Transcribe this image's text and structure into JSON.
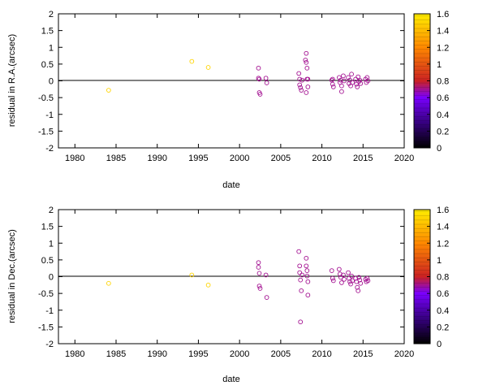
{
  "chart_data": [
    {
      "type": "scatter",
      "xlabel": "date",
      "ylabel": "residual in R.A.(arcsec)",
      "xlim": [
        1978,
        2020
      ],
      "ylim": [
        -2,
        2
      ],
      "xticks": [
        1980,
        1985,
        1990,
        1995,
        2000,
        2005,
        2010,
        2015,
        2020
      ],
      "yticks": [
        -2,
        -1.5,
        -1,
        -0.5,
        0,
        0.5,
        1,
        1.5,
        2
      ],
      "zero_line": true,
      "grid": false,
      "marker": "open-circle",
      "colorbar": {
        "range": [
          0,
          1.6
        ],
        "ticks": [
          0,
          0.2,
          0.4,
          0.6,
          0.8,
          1,
          1.2,
          1.4,
          1.6
        ],
        "colormap": [
          "#000000",
          "#7a00ff",
          "#cc2222",
          "#ff8800",
          "#ffee00"
        ]
      },
      "points": [
        {
          "x": 1984.1,
          "y": -0.28,
          "c": 1.5
        },
        {
          "x": 1994.2,
          "y": 0.58,
          "c": 1.5
        },
        {
          "x": 1996.2,
          "y": 0.4,
          "c": 1.5
        },
        {
          "x": 2002.3,
          "y": 0.38,
          "c": 0.6
        },
        {
          "x": 2002.3,
          "y": 0.08,
          "c": 0.6
        },
        {
          "x": 2002.4,
          "y": -0.35,
          "c": 0.6
        },
        {
          "x": 2002.5,
          "y": -0.4,
          "c": 0.6
        },
        {
          "x": 2002.4,
          "y": 0.05,
          "c": 0.6
        },
        {
          "x": 2003.2,
          "y": 0.08,
          "c": 0.6
        },
        {
          "x": 2003.3,
          "y": -0.06,
          "c": 0.6
        },
        {
          "x": 2007.2,
          "y": 0.22,
          "c": 0.6
        },
        {
          "x": 2007.3,
          "y": 0.05,
          "c": 0.6
        },
        {
          "x": 2007.3,
          "y": -0.12,
          "c": 0.6
        },
        {
          "x": 2007.4,
          "y": -0.2,
          "c": 0.6
        },
        {
          "x": 2007.5,
          "y": -0.28,
          "c": 0.6
        },
        {
          "x": 2007.6,
          "y": 0.02,
          "c": 0.6
        },
        {
          "x": 2008.1,
          "y": 0.82,
          "c": 0.6
        },
        {
          "x": 2008.1,
          "y": 0.55,
          "c": 0.6
        },
        {
          "x": 2008.2,
          "y": 0.38,
          "c": 0.6
        },
        {
          "x": 2008.0,
          "y": 0.62,
          "c": 0.6
        },
        {
          "x": 2008.2,
          "y": 0.05,
          "c": 0.6
        },
        {
          "x": 2008.3,
          "y": -0.18,
          "c": 0.6
        },
        {
          "x": 2008.1,
          "y": -0.35,
          "c": 0.6
        },
        {
          "x": 2008.3,
          "y": 0.05,
          "c": 0.6
        },
        {
          "x": 2011.2,
          "y": 0.02,
          "c": 0.6
        },
        {
          "x": 2011.3,
          "y": -0.1,
          "c": 0.6
        },
        {
          "x": 2011.4,
          "y": -0.18,
          "c": 0.6
        },
        {
          "x": 2011.3,
          "y": 0.05,
          "c": 0.6
        },
        {
          "x": 2012.1,
          "y": 0.1,
          "c": 0.6
        },
        {
          "x": 2012.2,
          "y": -0.05,
          "c": 0.6
        },
        {
          "x": 2012.3,
          "y": 0.02,
          "c": 0.6
        },
        {
          "x": 2012.4,
          "y": -0.15,
          "c": 0.6
        },
        {
          "x": 2012.4,
          "y": -0.32,
          "c": 0.6
        },
        {
          "x": 2012.6,
          "y": 0.15,
          "c": 0.6
        },
        {
          "x": 2012.7,
          "y": 0.0,
          "c": 0.6
        },
        {
          "x": 2013.2,
          "y": 0.1,
          "c": 0.6
        },
        {
          "x": 2013.3,
          "y": -0.08,
          "c": 0.6
        },
        {
          "x": 2013.4,
          "y": 0.02,
          "c": 0.6
        },
        {
          "x": 2013.5,
          "y": -0.15,
          "c": 0.6
        },
        {
          "x": 2013.6,
          "y": 0.2,
          "c": 0.6
        },
        {
          "x": 2013.7,
          "y": -0.05,
          "c": 0.6
        },
        {
          "x": 2014.1,
          "y": 0.05,
          "c": 0.6
        },
        {
          "x": 2014.2,
          "y": -0.1,
          "c": 0.6
        },
        {
          "x": 2014.3,
          "y": -0.18,
          "c": 0.6
        },
        {
          "x": 2014.4,
          "y": 0.12,
          "c": 0.6
        },
        {
          "x": 2014.5,
          "y": -0.02,
          "c": 0.6
        },
        {
          "x": 2014.6,
          "y": 0.02,
          "c": 0.6
        },
        {
          "x": 2014.7,
          "y": -0.08,
          "c": 0.6
        },
        {
          "x": 2015.3,
          "y": 0.05,
          "c": 0.6
        },
        {
          "x": 2015.4,
          "y": -0.05,
          "c": 0.6
        },
        {
          "x": 2015.5,
          "y": 0.1,
          "c": 0.6
        },
        {
          "x": 2015.6,
          "y": 0.0,
          "c": 0.6
        }
      ]
    },
    {
      "type": "scatter",
      "xlabel": "date",
      "ylabel": "residual in Dec.(arcsec)",
      "xlim": [
        1978,
        2020
      ],
      "ylim": [
        -2,
        2
      ],
      "xticks": [
        1980,
        1985,
        1990,
        1995,
        2000,
        2005,
        2010,
        2015,
        2020
      ],
      "yticks": [
        -2,
        -1.5,
        -1,
        -0.5,
        0,
        0.5,
        1,
        1.5,
        2
      ],
      "zero_line": true,
      "grid": false,
      "marker": "open-circle",
      "colorbar": {
        "range": [
          0,
          1.6
        ],
        "ticks": [
          0,
          0.2,
          0.4,
          0.6,
          0.8,
          1,
          1.2,
          1.4,
          1.6
        ],
        "colormap": [
          "#000000",
          "#7a00ff",
          "#cc2222",
          "#ff8800",
          "#ffee00"
        ]
      },
      "points": [
        {
          "x": 1984.1,
          "y": -0.2,
          "c": 1.5
        },
        {
          "x": 1994.2,
          "y": 0.05,
          "c": 1.5
        },
        {
          "x": 1996.2,
          "y": -0.25,
          "c": 1.5
        },
        {
          "x": 2002.3,
          "y": 0.42,
          "c": 0.6
        },
        {
          "x": 2002.3,
          "y": 0.28,
          "c": 0.6
        },
        {
          "x": 2002.4,
          "y": 0.1,
          "c": 0.6
        },
        {
          "x": 2002.4,
          "y": -0.28,
          "c": 0.6
        },
        {
          "x": 2002.5,
          "y": -0.35,
          "c": 0.6
        },
        {
          "x": 2003.2,
          "y": 0.05,
          "c": 0.6
        },
        {
          "x": 2003.3,
          "y": -0.62,
          "c": 0.6
        },
        {
          "x": 2007.2,
          "y": 0.75,
          "c": 0.6
        },
        {
          "x": 2007.3,
          "y": 0.32,
          "c": 0.6
        },
        {
          "x": 2007.3,
          "y": 0.12,
          "c": 0.6
        },
        {
          "x": 2007.4,
          "y": -0.1,
          "c": 0.6
        },
        {
          "x": 2007.5,
          "y": -0.42,
          "c": 0.6
        },
        {
          "x": 2007.4,
          "y": -1.35,
          "c": 0.6
        },
        {
          "x": 2007.6,
          "y": 0.05,
          "c": 0.6
        },
        {
          "x": 2008.1,
          "y": 0.55,
          "c": 0.6
        },
        {
          "x": 2008.1,
          "y": 0.32,
          "c": 0.6
        },
        {
          "x": 2008.2,
          "y": 0.18,
          "c": 0.6
        },
        {
          "x": 2008.2,
          "y": 0.02,
          "c": 0.6
        },
        {
          "x": 2008.3,
          "y": -0.15,
          "c": 0.6
        },
        {
          "x": 2008.3,
          "y": -0.55,
          "c": 0.6
        },
        {
          "x": 2011.2,
          "y": 0.18,
          "c": 0.6
        },
        {
          "x": 2011.3,
          "y": -0.05,
          "c": 0.6
        },
        {
          "x": 2011.4,
          "y": -0.12,
          "c": 0.6
        },
        {
          "x": 2012.1,
          "y": 0.22,
          "c": 0.6
        },
        {
          "x": 2012.2,
          "y": 0.08,
          "c": 0.6
        },
        {
          "x": 2012.3,
          "y": -0.02,
          "c": 0.6
        },
        {
          "x": 2012.4,
          "y": -0.18,
          "c": 0.6
        },
        {
          "x": 2012.6,
          "y": 0.05,
          "c": 0.6
        },
        {
          "x": 2012.7,
          "y": -0.08,
          "c": 0.6
        },
        {
          "x": 2013.2,
          "y": 0.12,
          "c": 0.6
        },
        {
          "x": 2013.3,
          "y": -0.05,
          "c": 0.6
        },
        {
          "x": 2013.4,
          "y": -0.15,
          "c": 0.6
        },
        {
          "x": 2013.5,
          "y": -0.22,
          "c": 0.6
        },
        {
          "x": 2013.6,
          "y": 0.02,
          "c": 0.6
        },
        {
          "x": 2013.7,
          "y": -0.12,
          "c": 0.6
        },
        {
          "x": 2014.1,
          "y": -0.05,
          "c": 0.6
        },
        {
          "x": 2014.2,
          "y": -0.15,
          "c": 0.6
        },
        {
          "x": 2014.3,
          "y": -0.32,
          "c": 0.6
        },
        {
          "x": 2014.4,
          "y": -0.42,
          "c": 0.6
        },
        {
          "x": 2014.5,
          "y": -0.02,
          "c": 0.6
        },
        {
          "x": 2014.6,
          "y": -0.1,
          "c": 0.6
        },
        {
          "x": 2014.7,
          "y": -0.2,
          "c": 0.6
        },
        {
          "x": 2015.3,
          "y": -0.08,
          "c": 0.6
        },
        {
          "x": 2015.4,
          "y": -0.15,
          "c": 0.6
        },
        {
          "x": 2015.5,
          "y": -0.05,
          "c": 0.6
        },
        {
          "x": 2015.6,
          "y": -0.12,
          "c": 0.6
        }
      ]
    }
  ]
}
